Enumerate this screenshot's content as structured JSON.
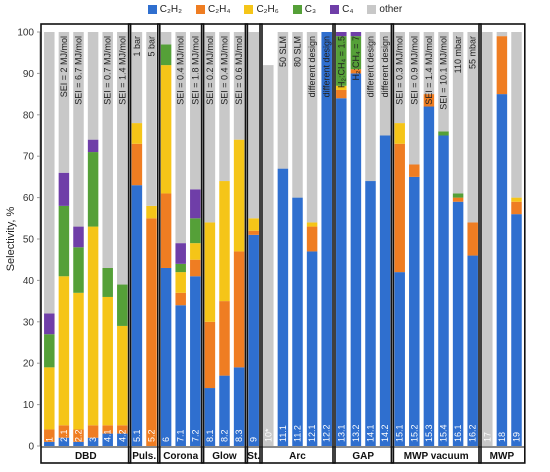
{
  "chart_data": {
    "type": "bar",
    "stacked": true,
    "ylabel": "Selectivity, %",
    "ylim": [
      0,
      100
    ],
    "yticks": [
      0,
      10,
      20,
      30,
      40,
      50,
      60,
      70,
      80,
      90,
      100
    ],
    "legend": [
      {
        "name": "C₂H₂",
        "color": "#2f6fcf"
      },
      {
        "name": "C₂H₄",
        "color": "#ef7d22"
      },
      {
        "name": "C₂H₆",
        "color": "#f5c518"
      },
      {
        "name": "C₃",
        "color": "#55a038"
      },
      {
        "name": "C₄",
        "color": "#6f3ea8"
      },
      {
        "name": "other",
        "color": "#c8c8c8"
      }
    ],
    "series_order": [
      "C₂H₂",
      "C₂H₄",
      "C₂H₆",
      "C₃",
      "C₄",
      "other"
    ],
    "bars": [
      {
        "label": "1",
        "values": [
          1,
          3,
          15,
          8,
          5,
          68
        ],
        "annotation": ""
      },
      {
        "label": "2.1",
        "values": [
          2,
          3,
          36,
          17,
          8,
          34
        ],
        "annotation": "SEI = 2 MJ/mol"
      },
      {
        "label": "2.2",
        "values": [
          1,
          3,
          33,
          11,
          5,
          47
        ],
        "annotation": "SEI = 6.7 MJ/mol"
      },
      {
        "label": "3",
        "values": [
          2,
          3,
          48,
          18,
          3,
          26
        ],
        "annotation": ""
      },
      {
        "label": "4.1",
        "values": [
          3,
          2,
          31,
          7,
          0,
          57
        ],
        "annotation": "SEI = 0.7 MJ/mol"
      },
      {
        "label": "4.2",
        "values": [
          3,
          2,
          24,
          10,
          0,
          61
        ],
        "annotation": "SEI = 1.4 MJ/mol"
      },
      {
        "label": "5.1",
        "values": [
          63,
          10,
          5,
          0,
          0,
          22
        ],
        "annotation": "1 bar"
      },
      {
        "label": "5.2",
        "values": [
          0,
          55,
          3,
          0,
          0,
          42
        ],
        "annotation": "5 bar"
      },
      {
        "label": "6",
        "values": [
          43,
          18,
          31,
          5,
          0,
          3
        ],
        "annotation": ""
      },
      {
        "label": "7.1",
        "values": [
          34,
          3,
          5,
          2,
          5,
          51
        ],
        "annotation": "SEI = 0.4 MJ/mol"
      },
      {
        "label": "7.2",
        "values": [
          41,
          4,
          4,
          6,
          7,
          38
        ],
        "annotation": "SEI = 1.8 MJ/mol"
      },
      {
        "label": "8.1",
        "values": [
          14,
          16,
          24,
          0,
          0,
          46
        ],
        "annotation": "SEI = 0.2 MJ/mol"
      },
      {
        "label": "8.2",
        "values": [
          17,
          18,
          29,
          0,
          0,
          36
        ],
        "annotation": "SEI = 0.4 MJ/mol"
      },
      {
        "label": "8.3",
        "values": [
          19,
          28,
          27,
          0,
          0,
          26
        ],
        "annotation": "SEI = 0.6 MJ/mol"
      },
      {
        "label": "9",
        "values": [
          51,
          1,
          3,
          0,
          0,
          45
        ],
        "annotation": ""
      },
      {
        "label": "10*",
        "values": [
          0,
          0,
          0,
          0,
          0,
          92
        ],
        "annotation": ""
      },
      {
        "label": "11.1",
        "values": [
          67,
          0,
          0,
          0,
          0,
          33
        ],
        "annotation": "50 SLM"
      },
      {
        "label": "11.2",
        "values": [
          60,
          0,
          0,
          0,
          0,
          40
        ],
        "annotation": "80 SLM"
      },
      {
        "label": "12.1",
        "values": [
          47,
          6,
          1,
          0,
          0,
          46
        ],
        "annotation": "different design"
      },
      {
        "label": "12.2",
        "values": [
          100,
          0,
          0,
          0,
          0,
          0
        ],
        "annotation": "different design"
      },
      {
        "label": "13.1",
        "values": [
          84,
          2,
          1,
          12,
          1,
          0
        ],
        "annotation": "H₂:CH₄ = 1.5"
      },
      {
        "label": "13.2",
        "values": [
          90,
          1,
          0,
          8,
          1,
          0
        ],
        "annotation": "H₂:CH₄ = 7"
      },
      {
        "label": "14.1",
        "values": [
          64,
          0,
          0,
          0,
          0,
          36
        ],
        "annotation": "different design"
      },
      {
        "label": "14.2",
        "values": [
          75,
          0,
          0,
          0,
          0,
          25
        ],
        "annotation": "different design"
      },
      {
        "label": "15.1",
        "values": [
          42,
          31,
          5,
          0,
          0,
          22
        ],
        "annotation": "SEI = 0.3 MJ/mol"
      },
      {
        "label": "15.2",
        "values": [
          65,
          3,
          0,
          0,
          0,
          32
        ],
        "annotation": "SEI = 0.9 MJ/mol"
      },
      {
        "label": "15.3",
        "values": [
          82,
          3,
          0,
          0,
          0,
          15
        ],
        "annotation": "SEI = 1.4 MJ/mol"
      },
      {
        "label": "15.4",
        "values": [
          75,
          0,
          0,
          1,
          0,
          24
        ],
        "annotation": "SEI = 10.1 MJ/mol"
      },
      {
        "label": "16.1",
        "values": [
          59,
          1,
          0,
          1,
          0,
          39
        ],
        "annotation": "110 mbar"
      },
      {
        "label": "16.2",
        "values": [
          46,
          8,
          0,
          0,
          0,
          46
        ],
        "annotation": "55 mbar"
      },
      {
        "label": "17",
        "values": [
          0,
          0,
          0,
          0,
          0,
          100
        ],
        "annotation": ""
      },
      {
        "label": "18",
        "values": [
          85,
          14,
          0,
          0,
          0,
          1
        ],
        "annotation": ""
      },
      {
        "label": "19",
        "values": [
          56,
          3,
          1,
          0,
          0,
          40
        ],
        "annotation": ""
      }
    ],
    "groups": [
      {
        "name": "DBD",
        "first": 0,
        "last": 5
      },
      {
        "name": "Puls.",
        "first": 6,
        "last": 7
      },
      {
        "name": "Corona",
        "first": 8,
        "last": 10
      },
      {
        "name": "Glow",
        "first": 11,
        "last": 13
      },
      {
        "name": "St.",
        "first": 14,
        "last": 14
      },
      {
        "name": "Arc",
        "first": 15,
        "last": 19
      },
      {
        "name": "GAP",
        "first": 20,
        "last": 23
      },
      {
        "name": "MWP vacuum",
        "first": 24,
        "last": 29
      },
      {
        "name": "MWP",
        "first": 30,
        "last": 32
      }
    ]
  }
}
